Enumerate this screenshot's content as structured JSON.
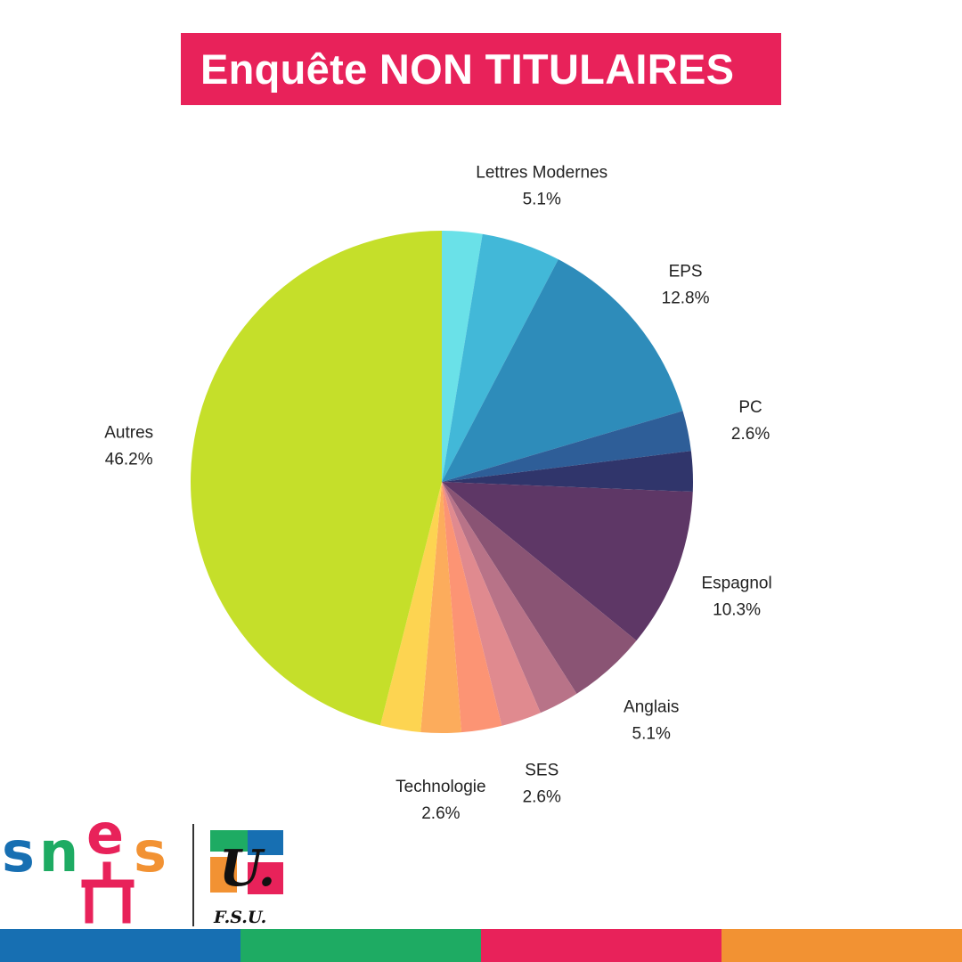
{
  "title": "Enquête NON TITULAIRES",
  "colors": {
    "banner": "#e8225a",
    "footer": [
      "#176fb2",
      "#1eab63",
      "#e8225a",
      "#f29233"
    ]
  },
  "logos": {
    "snes": {
      "text": "snes"
    },
    "fsu": {
      "mark": "U.",
      "caption": "F.S.U."
    }
  },
  "chart_data": {
    "type": "pie",
    "title": "Enquête NON TITULAIRES",
    "start": "12 o'clock, clockwise",
    "slices": [
      {
        "name": "",
        "value": 2.6,
        "color": "#6ae1e8",
        "labeled": false
      },
      {
        "name": "Lettres Modernes",
        "value": 5.1,
        "color": "#42b8d8",
        "labeled": true,
        "pct_text": "5.1%"
      },
      {
        "name": "EPS",
        "value": 12.8,
        "color": "#2e8cba",
        "labeled": true,
        "pct_text": "12.8%"
      },
      {
        "name": "PC",
        "value": 2.6,
        "color": "#2e5e98",
        "labeled": true,
        "pct_text": "2.6%"
      },
      {
        "name": "",
        "value": 2.6,
        "color": "#30356b",
        "labeled": false
      },
      {
        "name": "Espagnol",
        "value": 10.3,
        "color": "#5e3766",
        "labeled": true,
        "pct_text": "10.3%"
      },
      {
        "name": "Anglais",
        "value": 5.1,
        "color": "#8a5474",
        "labeled": true,
        "pct_text": "5.1%"
      },
      {
        "name": "",
        "value": 2.6,
        "color": "#b87388",
        "labeled": false
      },
      {
        "name": "SES",
        "value": 2.6,
        "color": "#e08a8f",
        "labeled": true,
        "pct_text": "2.6%"
      },
      {
        "name": "",
        "value": 2.6,
        "color": "#fc9474",
        "labeled": false
      },
      {
        "name": "Technologie",
        "value": 2.6,
        "color": "#fcac5c",
        "labeled": true,
        "pct_text": "2.6%"
      },
      {
        "name": "",
        "value": 2.6,
        "color": "#fdd451",
        "labeled": false
      },
      {
        "name": "Autres",
        "value": 46.2,
        "color": "#c5df2a",
        "labeled": true,
        "pct_text": "46.2%"
      }
    ]
  }
}
